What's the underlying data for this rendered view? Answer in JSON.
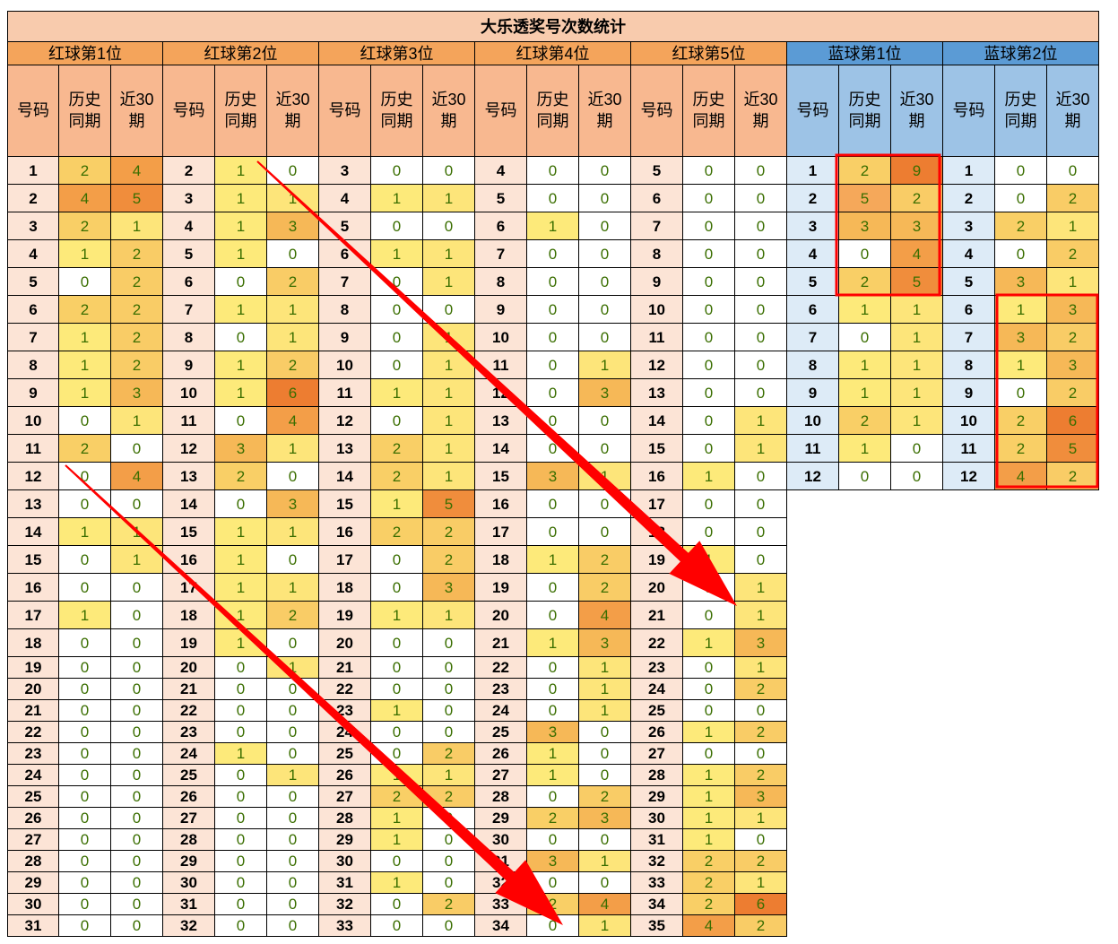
{
  "title": "大乐透奖号次数统计",
  "sub_headers": [
    "号码",
    "历史同期",
    "近30期"
  ],
  "sub_header_lines": [
    [
      "号码"
    ],
    [
      "历史",
      "同期"
    ],
    [
      "近30",
      "期"
    ]
  ],
  "colors": {
    "title_bg": "#f8cbad",
    "red_group_header": "#f4a45b",
    "red_sub_header": "#f8b890",
    "red_num_bg": "#fce4d6",
    "blue_group_header": "#5b9bd5",
    "blue_sub_header": "#9dc3e6",
    "blue_num_bg": "#ddebf7",
    "heat_1": "#fdea7a",
    "heat_2": "#f9cf66",
    "heat_3": "#f6b857",
    "heat_4": "#f39e48",
    "heat_5": "#ef8a3a",
    "heat_6": "#ed7d31",
    "arrow": "#ff0000",
    "box": "#ff0000"
  },
  "groups": [
    {
      "label": "红球第1位",
      "kind": "red",
      "rows": [
        [
          1,
          2,
          4
        ],
        [
          2,
          4,
          5
        ],
        [
          3,
          2,
          1
        ],
        [
          4,
          1,
          2
        ],
        [
          5,
          0,
          2
        ],
        [
          6,
          2,
          2
        ],
        [
          7,
          1,
          2
        ],
        [
          8,
          1,
          2
        ],
        [
          9,
          1,
          3
        ],
        [
          10,
          0,
          1
        ],
        [
          11,
          2,
          0
        ],
        [
          12,
          0,
          4
        ],
        [
          13,
          0,
          0
        ],
        [
          14,
          1,
          1
        ],
        [
          15,
          0,
          1
        ],
        [
          16,
          0,
          0
        ],
        [
          17,
          1,
          0
        ],
        [
          18,
          0,
          0
        ],
        [
          19,
          0,
          0
        ],
        [
          20,
          0,
          0
        ],
        [
          21,
          0,
          0
        ],
        [
          22,
          0,
          0
        ],
        [
          23,
          0,
          0
        ],
        [
          24,
          0,
          0
        ],
        [
          25,
          0,
          0
        ],
        [
          26,
          0,
          0
        ],
        [
          27,
          0,
          0
        ],
        [
          28,
          0,
          0
        ],
        [
          29,
          0,
          0
        ],
        [
          30,
          0,
          0
        ],
        [
          31,
          0,
          0
        ]
      ]
    },
    {
      "label": "红球第2位",
      "kind": "red",
      "rows": [
        [
          2,
          1,
          0
        ],
        [
          3,
          1,
          1
        ],
        [
          4,
          1,
          3
        ],
        [
          5,
          1,
          0
        ],
        [
          6,
          0,
          2
        ],
        [
          7,
          1,
          1
        ],
        [
          8,
          0,
          1
        ],
        [
          9,
          1,
          2
        ],
        [
          10,
          1,
          6
        ],
        [
          11,
          0,
          4
        ],
        [
          12,
          3,
          1
        ],
        [
          13,
          2,
          0
        ],
        [
          14,
          0,
          3
        ],
        [
          15,
          1,
          1
        ],
        [
          16,
          1,
          0
        ],
        [
          17,
          1,
          1
        ],
        [
          18,
          1,
          2
        ],
        [
          19,
          1,
          0
        ],
        [
          20,
          0,
          1
        ],
        [
          21,
          0,
          0
        ],
        [
          22,
          0,
          0
        ],
        [
          23,
          0,
          0
        ],
        [
          24,
          1,
          0
        ],
        [
          25,
          0,
          1
        ],
        [
          26,
          0,
          0
        ],
        [
          27,
          0,
          0
        ],
        [
          28,
          0,
          0
        ],
        [
          29,
          0,
          0
        ],
        [
          30,
          0,
          0
        ],
        [
          31,
          0,
          0
        ],
        [
          32,
          0,
          0
        ]
      ]
    },
    {
      "label": "红球第3位",
      "kind": "red",
      "rows": [
        [
          3,
          0,
          0
        ],
        [
          4,
          1,
          1
        ],
        [
          5,
          0,
          0
        ],
        [
          6,
          1,
          1
        ],
        [
          7,
          0,
          1
        ],
        [
          8,
          0,
          0
        ],
        [
          9,
          0,
          1
        ],
        [
          10,
          0,
          1
        ],
        [
          11,
          1,
          1
        ],
        [
          12,
          0,
          1
        ],
        [
          13,
          2,
          1
        ],
        [
          14,
          2,
          1
        ],
        [
          15,
          1,
          5
        ],
        [
          16,
          2,
          2
        ],
        [
          17,
          0,
          2
        ],
        [
          18,
          0,
          3
        ],
        [
          19,
          1,
          1
        ],
        [
          20,
          0,
          0
        ],
        [
          21,
          0,
          0
        ],
        [
          22,
          0,
          0
        ],
        [
          23,
          1,
          0
        ],
        [
          24,
          0,
          0
        ],
        [
          25,
          0,
          2
        ],
        [
          26,
          1,
          1
        ],
        [
          27,
          2,
          2
        ],
        [
          28,
          1,
          0
        ],
        [
          29,
          1,
          0
        ],
        [
          30,
          0,
          0
        ],
        [
          31,
          1,
          0
        ],
        [
          32,
          0,
          2
        ],
        [
          33,
          0,
          0
        ]
      ]
    },
    {
      "label": "红球第4位",
      "kind": "red",
      "rows": [
        [
          4,
          0,
          0
        ],
        [
          5,
          0,
          0
        ],
        [
          6,
          1,
          0
        ],
        [
          7,
          0,
          0
        ],
        [
          8,
          0,
          0
        ],
        [
          9,
          0,
          0
        ],
        [
          10,
          0,
          0
        ],
        [
          11,
          0,
          1
        ],
        [
          12,
          0,
          3
        ],
        [
          13,
          0,
          0
        ],
        [
          14,
          0,
          0
        ],
        [
          15,
          3,
          1
        ],
        [
          16,
          0,
          0
        ],
        [
          17,
          0,
          0
        ],
        [
          18,
          1,
          2
        ],
        [
          19,
          0,
          2
        ],
        [
          20,
          0,
          4
        ],
        [
          21,
          1,
          3
        ],
        [
          22,
          0,
          1
        ],
        [
          23,
          0,
          1
        ],
        [
          24,
          0,
          1
        ],
        [
          25,
          3,
          0
        ],
        [
          26,
          1,
          0
        ],
        [
          27,
          1,
          0
        ],
        [
          28,
          0,
          2
        ],
        [
          29,
          2,
          3
        ],
        [
          30,
          0,
          0
        ],
        [
          31,
          3,
          1
        ],
        [
          32,
          0,
          0
        ],
        [
          33,
          2,
          4
        ],
        [
          34,
          0,
          1
        ]
      ]
    },
    {
      "label": "红球第5位",
      "kind": "red",
      "rows": [
        [
          5,
          0,
          0
        ],
        [
          6,
          0,
          0
        ],
        [
          7,
          0,
          0
        ],
        [
          8,
          0,
          0
        ],
        [
          9,
          0,
          0
        ],
        [
          10,
          0,
          0
        ],
        [
          11,
          0,
          0
        ],
        [
          12,
          0,
          0
        ],
        [
          13,
          0,
          0
        ],
        [
          14,
          0,
          1
        ],
        [
          15,
          0,
          1
        ],
        [
          16,
          1,
          0
        ],
        [
          17,
          0,
          0
        ],
        [
          18,
          0,
          0
        ],
        [
          19,
          1,
          0
        ],
        [
          20,
          0,
          1
        ],
        [
          21,
          0,
          1
        ],
        [
          22,
          1,
          3
        ],
        [
          23,
          0,
          1
        ],
        [
          24,
          0,
          2
        ],
        [
          25,
          0,
          0
        ],
        [
          26,
          1,
          2
        ],
        [
          27,
          0,
          0
        ],
        [
          28,
          1,
          2
        ],
        [
          29,
          1,
          3
        ],
        [
          30,
          1,
          1
        ],
        [
          31,
          1,
          0
        ],
        [
          32,
          2,
          2
        ],
        [
          33,
          2,
          1
        ],
        [
          34,
          2,
          6
        ],
        [
          35,
          4,
          2
        ]
      ]
    },
    {
      "label": "蓝球第1位",
      "kind": "blue",
      "rows": [
        [
          1,
          2,
          9
        ],
        [
          2,
          5,
          2
        ],
        [
          3,
          3,
          3
        ],
        [
          4,
          0,
          4
        ],
        [
          5,
          2,
          5
        ],
        [
          6,
          1,
          1
        ],
        [
          7,
          0,
          1
        ],
        [
          8,
          1,
          1
        ],
        [
          9,
          1,
          1
        ],
        [
          10,
          2,
          1
        ],
        [
          11,
          1,
          0
        ],
        [
          12,
          0,
          0
        ]
      ]
    },
    {
      "label": "蓝球第2位",
      "kind": "blue",
      "rows": [
        [
          1,
          0,
          0
        ],
        [
          2,
          0,
          2
        ],
        [
          3,
          2,
          1
        ],
        [
          4,
          0,
          2
        ],
        [
          5,
          3,
          1
        ],
        [
          6,
          1,
          3
        ],
        [
          7,
          3,
          2
        ],
        [
          8,
          1,
          3
        ],
        [
          9,
          0,
          2
        ],
        [
          10,
          2,
          6
        ],
        [
          11,
          2,
          5
        ],
        [
          12,
          4,
          2
        ]
      ]
    }
  ]
}
